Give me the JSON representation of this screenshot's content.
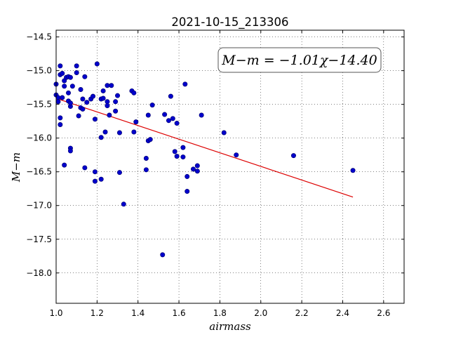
{
  "chart_data": {
    "type": "scatter",
    "title": "2021-10-15_213306",
    "xlabel": "airmass",
    "ylabel": "M−m",
    "xlim": [
      1.0,
      2.7
    ],
    "ylim": [
      -18.45,
      -14.4
    ],
    "y_inverted": true,
    "grid": true,
    "x_ticks": [
      1.0,
      1.2,
      1.4,
      1.6,
      1.8,
      2.0,
      2.2,
      2.4,
      2.6
    ],
    "x_tick_labels": [
      "1.0",
      "1.2",
      "1.4",
      "1.6",
      "1.8",
      "2.0",
      "2.2",
      "2.4",
      "2.6"
    ],
    "y_ticks": [
      -14.5,
      -15.0,
      -15.5,
      -16.0,
      -16.5,
      -17.0,
      -17.5,
      -18.0
    ],
    "y_tick_labels": [
      "−14.5",
      "−15.0",
      "−15.5",
      "−16.0",
      "−16.5",
      "−17.0",
      "−17.5",
      "−18.0"
    ],
    "annotation": "M−m = −1.01χ−14.40",
    "colors": {
      "points": "#0000cc",
      "fit_line": "#dd0000"
    },
    "fit_line": {
      "slope": -1.01,
      "intercept": -14.4,
      "x_range": [
        1.0,
        2.45
      ]
    },
    "points": [
      {
        "x": 1.0,
        "y": -15.2
      },
      {
        "x": 1.0,
        "y": -15.36
      },
      {
        "x": 1.01,
        "y": -15.4
      },
      {
        "x": 1.01,
        "y": -15.46
      },
      {
        "x": 1.02,
        "y": -14.93
      },
      {
        "x": 1.02,
        "y": -15.06
      },
      {
        "x": 1.02,
        "y": -15.8
      },
      {
        "x": 1.02,
        "y": -15.7
      },
      {
        "x": 1.03,
        "y": -15.04
      },
      {
        "x": 1.03,
        "y": -15.4
      },
      {
        "x": 1.04,
        "y": -15.15
      },
      {
        "x": 1.04,
        "y": -15.23
      },
      {
        "x": 1.04,
        "y": -16.4
      },
      {
        "x": 1.05,
        "y": -15.1
      },
      {
        "x": 1.06,
        "y": -15.09
      },
      {
        "x": 1.06,
        "y": -15.33
      },
      {
        "x": 1.06,
        "y": -15.45
      },
      {
        "x": 1.07,
        "y": -15.1
      },
      {
        "x": 1.07,
        "y": -15.53
      },
      {
        "x": 1.07,
        "y": -15.48
      },
      {
        "x": 1.07,
        "y": -16.15
      },
      {
        "x": 1.07,
        "y": -16.19
      },
      {
        "x": 1.08,
        "y": -15.23
      },
      {
        "x": 1.1,
        "y": -14.93
      },
      {
        "x": 1.1,
        "y": -15.03
      },
      {
        "x": 1.11,
        "y": -15.67
      },
      {
        "x": 1.12,
        "y": -15.28
      },
      {
        "x": 1.12,
        "y": -15.55
      },
      {
        "x": 1.13,
        "y": -15.42
      },
      {
        "x": 1.13,
        "y": -15.57
      },
      {
        "x": 1.14,
        "y": -15.09
      },
      {
        "x": 1.14,
        "y": -16.44
      },
      {
        "x": 1.15,
        "y": -15.47
      },
      {
        "x": 1.17,
        "y": -15.42
      },
      {
        "x": 1.18,
        "y": -15.38
      },
      {
        "x": 1.19,
        "y": -15.72
      },
      {
        "x": 1.19,
        "y": -16.5
      },
      {
        "x": 1.19,
        "y": -16.64
      },
      {
        "x": 1.2,
        "y": -14.9
      },
      {
        "x": 1.22,
        "y": -15.42
      },
      {
        "x": 1.22,
        "y": -15.99
      },
      {
        "x": 1.22,
        "y": -16.61
      },
      {
        "x": 1.23,
        "y": -15.3
      },
      {
        "x": 1.23,
        "y": -15.41
      },
      {
        "x": 1.24,
        "y": -15.91
      },
      {
        "x": 1.25,
        "y": -15.22
      },
      {
        "x": 1.25,
        "y": -15.46
      },
      {
        "x": 1.25,
        "y": -15.52
      },
      {
        "x": 1.26,
        "y": -15.66
      },
      {
        "x": 1.27,
        "y": -15.22
      },
      {
        "x": 1.29,
        "y": -15.46
      },
      {
        "x": 1.29,
        "y": -15.6
      },
      {
        "x": 1.3,
        "y": -15.37
      },
      {
        "x": 1.31,
        "y": -16.51
      },
      {
        "x": 1.31,
        "y": -15.92
      },
      {
        "x": 1.33,
        "y": -16.98
      },
      {
        "x": 1.37,
        "y": -15.3
      },
      {
        "x": 1.38,
        "y": -15.33
      },
      {
        "x": 1.38,
        "y": -15.91
      },
      {
        "x": 1.39,
        "y": -15.76
      },
      {
        "x": 1.44,
        "y": -16.47
      },
      {
        "x": 1.44,
        "y": -16.3
      },
      {
        "x": 1.45,
        "y": -15.66
      },
      {
        "x": 1.45,
        "y": -16.04
      },
      {
        "x": 1.46,
        "y": -16.02
      },
      {
        "x": 1.47,
        "y": -15.51
      },
      {
        "x": 1.52,
        "y": -17.73
      },
      {
        "x": 1.53,
        "y": -15.65
      },
      {
        "x": 1.55,
        "y": -15.74
      },
      {
        "x": 1.56,
        "y": -15.38
      },
      {
        "x": 1.57,
        "y": -15.71
      },
      {
        "x": 1.58,
        "y": -16.2
      },
      {
        "x": 1.59,
        "y": -15.78
      },
      {
        "x": 1.59,
        "y": -16.27
      },
      {
        "x": 1.62,
        "y": -16.14
      },
      {
        "x": 1.62,
        "y": -16.28
      },
      {
        "x": 1.63,
        "y": -15.2
      },
      {
        "x": 1.64,
        "y": -16.57
      },
      {
        "x": 1.64,
        "y": -16.79
      },
      {
        "x": 1.67,
        "y": -16.46
      },
      {
        "x": 1.69,
        "y": -16.41
      },
      {
        "x": 1.69,
        "y": -16.49
      },
      {
        "x": 1.71,
        "y": -15.66
      },
      {
        "x": 1.82,
        "y": -15.92
      },
      {
        "x": 1.88,
        "y": -16.25
      },
      {
        "x": 2.16,
        "y": -16.26
      },
      {
        "x": 2.45,
        "y": -16.48
      }
    ]
  }
}
